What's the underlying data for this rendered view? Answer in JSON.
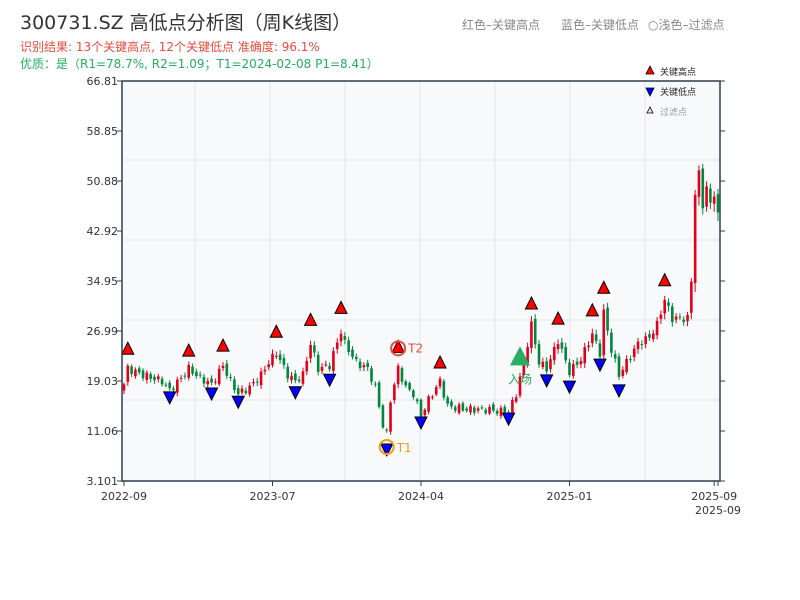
{
  "header": {
    "title": "300731.SZ 高低点分析图（周K线图）",
    "result_line": "识别结果: 13个关键高点, 12个关键低点   准确度: 96.1%",
    "quality_line": "优质：是（R1=78.7%, R2=1.09；T1=2024-02-08 P1=8.41）",
    "legend_red": "红色–关键高点",
    "legend_blue": "蓝色–关键低点",
    "legend_light": "○浅色–过滤点"
  },
  "chart_data": {
    "type": "candlestick",
    "title": "300731.SZ 高低点分析图（周K线图）",
    "ylim": [
      3.101,
      66.81
    ],
    "y_ticks": [
      "66.81",
      "58.85",
      "50.88",
      "42.92",
      "34.95",
      "26.99",
      "19.03",
      "11.06",
      "3.101"
    ],
    "x_ticks": [
      {
        "index": 0,
        "label": "2022-09"
      },
      {
        "index": 39,
        "label": "2023-07"
      },
      {
        "index": 78,
        "label": "2024-04"
      },
      {
        "index": 117,
        "label": "2025-01"
      },
      {
        "index": 155,
        "label": "2025-09"
      },
      {
        "index": 156,
        "label": "2025-09"
      }
    ],
    "n_weeks": 157,
    "close_anchors": [
      [
        0,
        18.5
      ],
      [
        1,
        21
      ],
      [
        5,
        20
      ],
      [
        10,
        19
      ],
      [
        12,
        17.5
      ],
      [
        15,
        19.5
      ],
      [
        17,
        21
      ],
      [
        20,
        19.5
      ],
      [
        23,
        18.5
      ],
      [
        26,
        21.5
      ],
      [
        28,
        19
      ],
      [
        30,
        17
      ],
      [
        33,
        18
      ],
      [
        36,
        20
      ],
      [
        38,
        22
      ],
      [
        40,
        23.5
      ],
      [
        43,
        20
      ],
      [
        45,
        19
      ],
      [
        47,
        20
      ],
      [
        49,
        25
      ],
      [
        51,
        21
      ],
      [
        54,
        21.5
      ],
      [
        57,
        27
      ],
      [
        58,
        25
      ],
      [
        61,
        22
      ],
      [
        64,
        21
      ],
      [
        66,
        18
      ],
      [
        68,
        12
      ],
      [
        69,
        10.5
      ],
      [
        70,
        16
      ],
      [
        72,
        21
      ],
      [
        74,
        18
      ],
      [
        76,
        17
      ],
      [
        78,
        13.5
      ],
      [
        80,
        16
      ],
      [
        83,
        19
      ],
      [
        85,
        15
      ],
      [
        90,
        14.5
      ],
      [
        95,
        14.5
      ],
      [
        101,
        14
      ],
      [
        103,
        17
      ],
      [
        105,
        22
      ],
      [
        107,
        28
      ],
      [
        109,
        22
      ],
      [
        111,
        21
      ],
      [
        114,
        25.5
      ],
      [
        117,
        20.5
      ],
      [
        120,
        22.5
      ],
      [
        123,
        26.5
      ],
      [
        125,
        23.5
      ],
      [
        126,
        30
      ],
      [
        128,
        24
      ],
      [
        130,
        20
      ],
      [
        132,
        22
      ],
      [
        135,
        25
      ],
      [
        138,
        26
      ],
      [
        140,
        28
      ],
      [
        142,
        32
      ],
      [
        144,
        29
      ],
      [
        146,
        29
      ],
      [
        148,
        29
      ],
      [
        149,
        35
      ],
      [
        150,
        49
      ],
      [
        151,
        52
      ],
      [
        152,
        47
      ],
      [
        153,
        50
      ],
      [
        154,
        47
      ],
      [
        155,
        49
      ],
      [
        156,
        45.5
      ]
    ],
    "key_highs": [
      [
        1,
        22.5
      ],
      [
        17,
        22.2
      ],
      [
        26,
        23.0
      ],
      [
        40,
        25.2
      ],
      [
        49,
        27.1
      ],
      [
        57,
        29.0
      ],
      [
        72,
        22.8
      ],
      [
        83,
        20.3
      ],
      [
        107,
        29.7
      ],
      [
        114,
        27.3
      ],
      [
        123,
        28.6
      ],
      [
        126,
        32.2
      ],
      [
        142,
        33.4
      ]
    ],
    "key_lows": [
      [
        12,
        18.1
      ],
      [
        23,
        18.7
      ],
      [
        30,
        17.4
      ],
      [
        45,
        18.9
      ],
      [
        54,
        20.9
      ],
      [
        69,
        9.8
      ],
      [
        78,
        14.1
      ],
      [
        101,
        14.7
      ],
      [
        111,
        20.8
      ],
      [
        117,
        19.8
      ],
      [
        125,
        23.3
      ],
      [
        130,
        19.2
      ]
    ],
    "annotations": [
      {
        "label": "T1",
        "index": 69,
        "price": 9.8,
        "color": "#f39c12"
      },
      {
        "label": "T2",
        "index": 72,
        "price": 22.8,
        "color": "#e74c3c"
      },
      {
        "label": "入场",
        "index": 104,
        "price": 22.8,
        "color": "#27ae60"
      }
    ],
    "legend": {
      "position": "top-right",
      "items": [
        "关键高点",
        "关键低点",
        "过滤点"
      ]
    },
    "colors": {
      "up": "#e0001b",
      "down": "#00873c",
      "high": "#ff0000",
      "low": "#0000ff"
    }
  }
}
